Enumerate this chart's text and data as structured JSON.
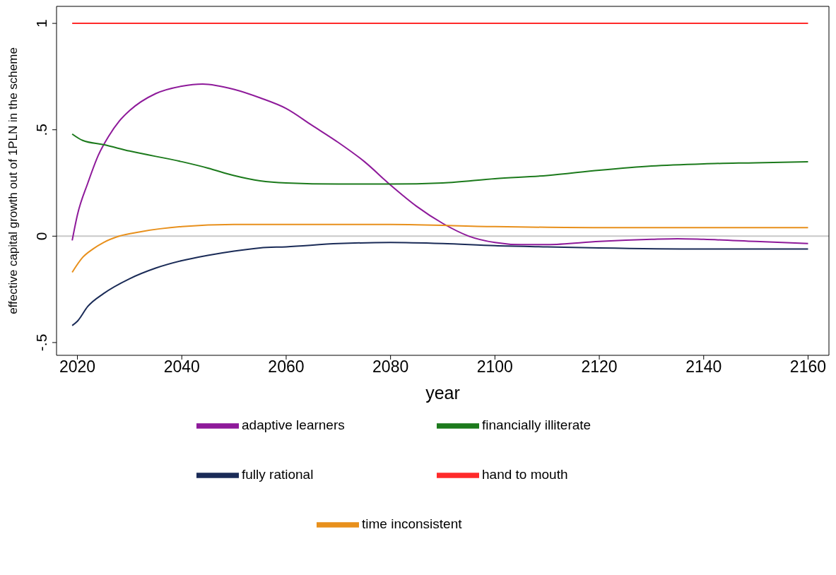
{
  "chart_data": {
    "type": "line",
    "xlabel": "year",
    "ylabel": "effective capital growth out of 1PLN in the scheme",
    "xlim": [
      2016,
      2164
    ],
    "xticks": [
      2020,
      2040,
      2060,
      2080,
      2100,
      2120,
      2140,
      2160
    ],
    "ylim": [
      -0.56,
      1.08
    ],
    "yticks": [
      {
        "value": -0.5,
        "label": "-.5"
      },
      0,
      {
        "value": 0.5,
        "label": ".5"
      },
      1
    ],
    "grid": false,
    "legend": "bottom",
    "marker": "none",
    "line_style": "solid",
    "ref_lines": [
      {
        "axis": "y",
        "value": 0,
        "label": null,
        "color": "#c8c8c8"
      }
    ],
    "series": [
      {
        "name": "fully rational",
        "color": "#1a2b57",
        "x": [
          2019,
          2020,
          2022,
          2025,
          2030,
          2035,
          2040,
          2045,
          2050,
          2055,
          2060,
          2070,
          2080,
          2090,
          2100,
          2110,
          2120,
          2140,
          2160
        ],
        "values": [
          -0.42,
          -0.4,
          -0.33,
          -0.27,
          -0.2,
          -0.15,
          -0.115,
          -0.09,
          -0.07,
          -0.055,
          -0.05,
          -0.035,
          -0.03,
          -0.035,
          -0.045,
          -0.05,
          -0.055,
          -0.06,
          -0.06
        ]
      },
      {
        "name": "adaptive learners",
        "color": "#8e1a9a",
        "x": [
          2019,
          2020,
          2022,
          2024,
          2026,
          2028,
          2030,
          2035,
          2040,
          2044,
          2050,
          2055,
          2060,
          2065,
          2070,
          2075,
          2080,
          2085,
          2090,
          2095,
          2100,
          2105,
          2110,
          2120,
          2130,
          2135,
          2140,
          2150,
          2160
        ],
        "values": [
          -0.02,
          0.1,
          0.25,
          0.38,
          0.47,
          0.54,
          0.59,
          0.67,
          0.705,
          0.715,
          0.69,
          0.65,
          0.6,
          0.52,
          0.44,
          0.35,
          0.24,
          0.14,
          0.06,
          0.0,
          -0.03,
          -0.04,
          -0.04,
          -0.025,
          -0.015,
          -0.012,
          -0.015,
          -0.025,
          -0.035
        ]
      },
      {
        "name": "time inconsistent",
        "color": "#e8901c",
        "x": [
          2019,
          2021,
          2023,
          2025,
          2028,
          2032,
          2040,
          2050,
          2060,
          2080,
          2100,
          2120,
          2140,
          2160
        ],
        "values": [
          -0.17,
          -0.1,
          -0.06,
          -0.03,
          0,
          0.02,
          0.045,
          0.055,
          0.055,
          0.055,
          0.045,
          0.04,
          0.04,
          0.04
        ]
      },
      {
        "name": "hand to mouth",
        "color": "#ff2a2a",
        "x": [
          2019,
          2160
        ],
        "values": [
          1,
          1
        ]
      },
      {
        "name": "financially illiterate",
        "color": "#1c7a1c",
        "x": [
          2019,
          2021,
          2025,
          2030,
          2040,
          2045,
          2050,
          2055,
          2060,
          2070,
          2080,
          2090,
          2100,
          2110,
          2120,
          2130,
          2140,
          2150,
          2160
        ],
        "values": [
          0.48,
          0.45,
          0.43,
          0.4,
          0.35,
          0.32,
          0.285,
          0.26,
          0.25,
          0.245,
          0.245,
          0.25,
          0.27,
          0.285,
          0.31,
          0.33,
          0.34,
          0.345,
          0.35
        ]
      }
    ]
  }
}
